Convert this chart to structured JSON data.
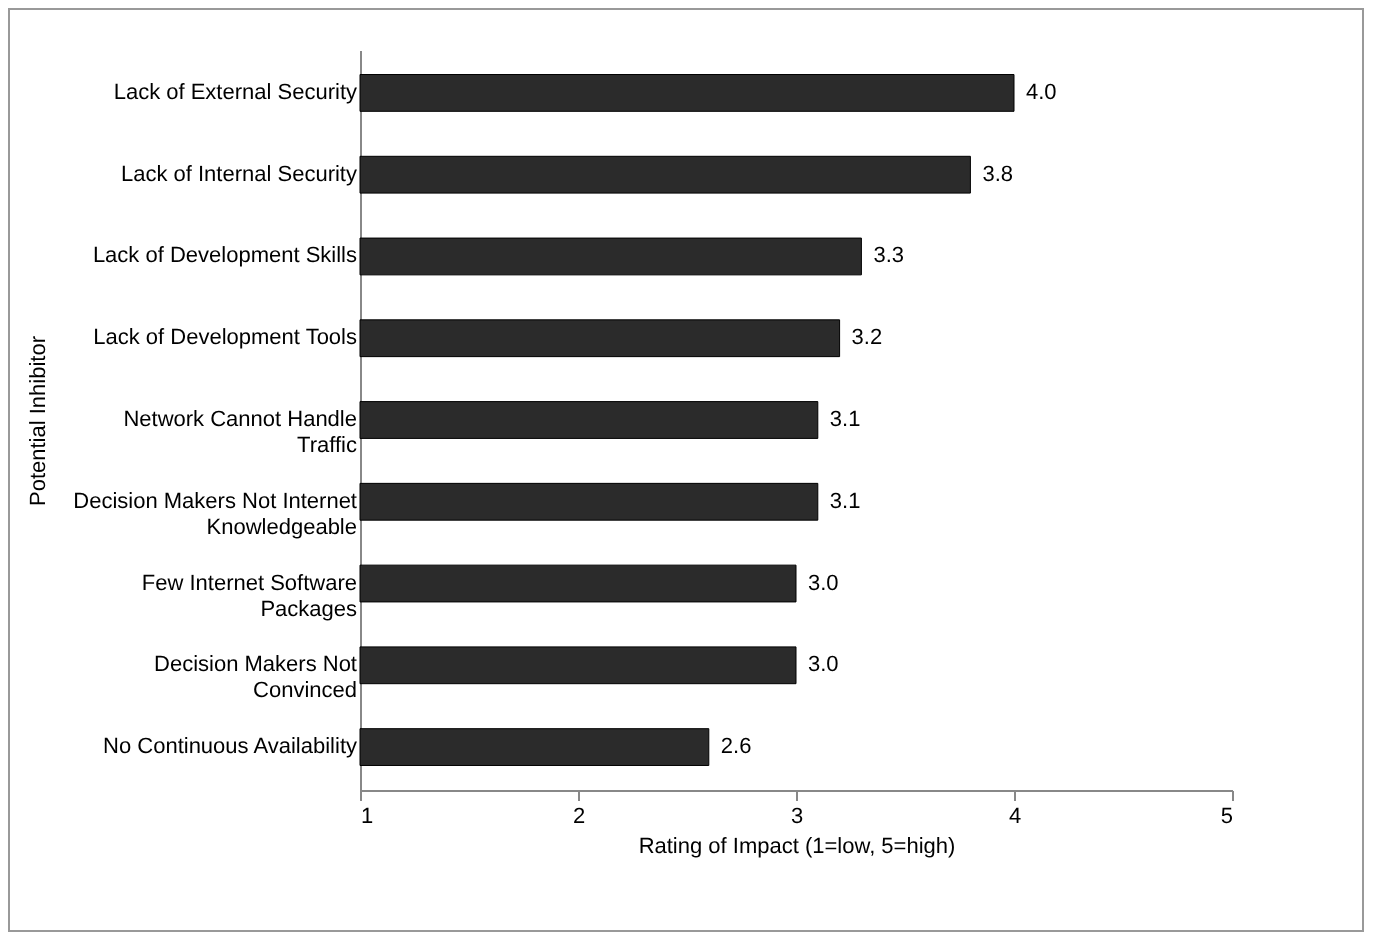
{
  "chart_data": {
    "type": "bar",
    "orientation": "horizontal",
    "xlabel": "Rating of Impact (1=low, 5=high)",
    "ylabel": "Potential Inhibitor",
    "categories": [
      "Lack of External Security",
      "Lack of Internal Security",
      "Lack of Development Skills",
      "Lack of Development Tools",
      "Network Cannot Handle Traffic",
      "Decision Makers Not Internet Knowledgeable",
      "Few Internet Software Packages",
      "Decision Makers Not Convinced",
      "No Continuous Availability"
    ],
    "values": [
      4.0,
      3.8,
      3.3,
      3.2,
      3.1,
      3.1,
      3.0,
      3.0,
      2.6
    ],
    "value_labels": [
      "4.0",
      "3.8",
      "3.3",
      "3.2",
      "3.1",
      "3.1",
      "3.0",
      "3.0",
      "2.6"
    ],
    "color": "#2b2b2b",
    "xlim": [
      1,
      5
    ],
    "xticks": [
      1,
      2,
      3,
      4,
      5
    ],
    "grid": false
  }
}
